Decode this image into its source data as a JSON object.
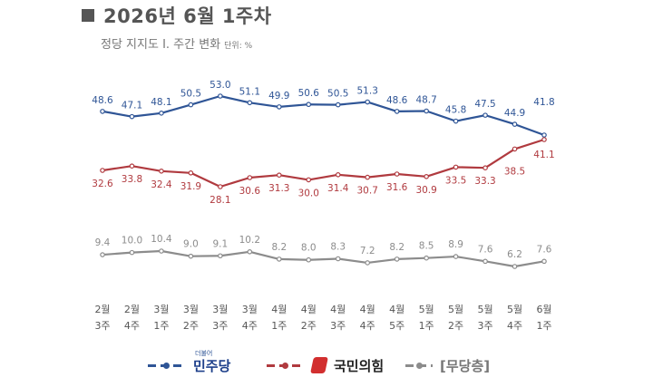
{
  "title": "2026년 6월 1주차",
  "subtitle": "정당 지지도 Ⅰ. 주간 변화",
  "unit": "단위: %",
  "chart_data": {
    "type": "line",
    "categories": [
      [
        "2월",
        "3주"
      ],
      [
        "2월",
        "4주"
      ],
      [
        "3월",
        "1주"
      ],
      [
        "3월",
        "2주"
      ],
      [
        "3월",
        "3주"
      ],
      [
        "3월",
        "4주"
      ],
      [
        "4월",
        "1주"
      ],
      [
        "4월",
        "2주"
      ],
      [
        "4월",
        "3주"
      ],
      [
        "4월",
        "4주"
      ],
      [
        "4월",
        "5주"
      ],
      [
        "5월",
        "1주"
      ],
      [
        "5월",
        "2주"
      ],
      [
        "5월",
        "3주"
      ],
      [
        "5월",
        "4주"
      ],
      [
        "6월",
        "1주"
      ]
    ],
    "series": [
      {
        "name": "민주당",
        "color": "#2f5596",
        "values": [
          48.6,
          47.1,
          48.1,
          50.5,
          53.0,
          51.1,
          49.9,
          50.6,
          50.5,
          51.3,
          48.6,
          48.7,
          45.8,
          47.5,
          44.9,
          41.8
        ]
      },
      {
        "name": "국민의힘",
        "color": "#b03a3f",
        "values": [
          32.6,
          33.8,
          32.4,
          31.9,
          28.1,
          30.6,
          31.3,
          30.0,
          31.4,
          30.7,
          31.6,
          30.9,
          33.5,
          33.3,
          38.5,
          41.1
        ]
      },
      {
        "name": "[무당층]",
        "color": "#8c8c8c",
        "values": [
          9.4,
          10.0,
          10.4,
          9.0,
          9.1,
          10.2,
          8.2,
          8.0,
          8.3,
          7.2,
          8.2,
          8.5,
          8.9,
          7.6,
          6.2,
          7.6
        ]
      }
    ]
  },
  "legend": {
    "democratic_label": "민주당",
    "democratic_tag": "더불어",
    "ppp_label": "국민의힘",
    "independent_label": "[무당층]"
  }
}
